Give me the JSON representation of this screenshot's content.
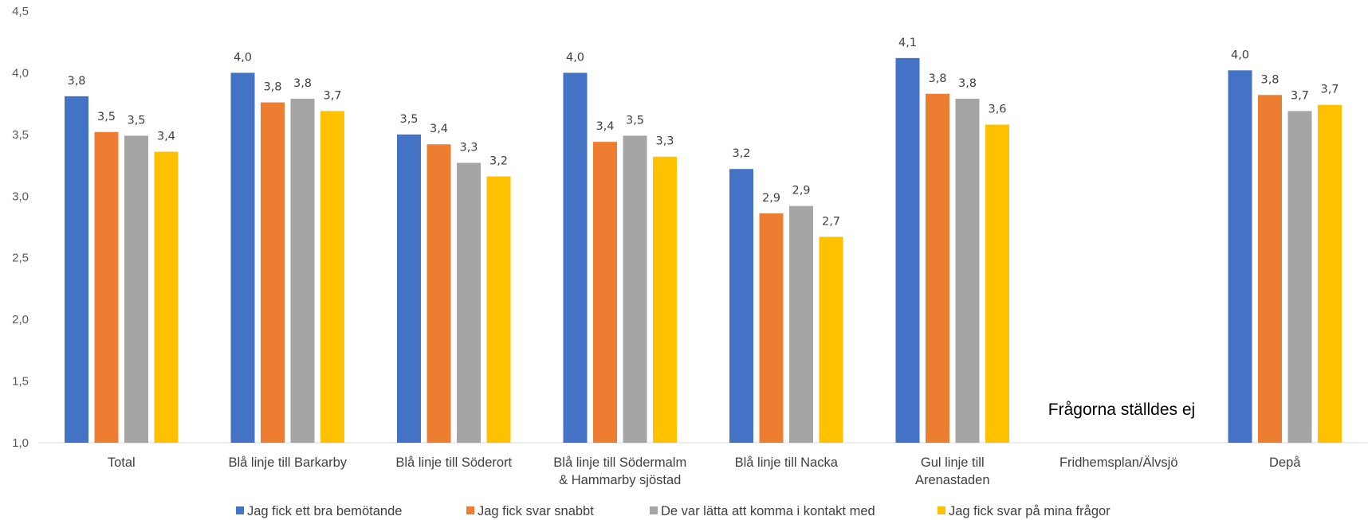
{
  "chart_data": {
    "type": "bar",
    "ylim": [
      1.0,
      4.5
    ],
    "yticks": [
      "1,0",
      "1,5",
      "2,0",
      "2,5",
      "3,0",
      "3,5",
      "4,0",
      "4,5"
    ],
    "categories": [
      [
        "Total"
      ],
      [
        "Blå linje till Barkarby"
      ],
      [
        "Blå linje till Söderort"
      ],
      [
        "Blå linje till Södermalm",
        "& Hammarby sjöstad"
      ],
      [
        "Blå linje till Nacka"
      ],
      [
        "Gul linje till",
        "Arenastaden"
      ],
      [
        "Fridhemsplan/Älvsjö"
      ],
      [
        "Depå"
      ]
    ],
    "series": [
      {
        "name": "Jag fick ett bra bemötande",
        "color": "#4472C4",
        "values": [
          3.81,
          4.0,
          3.5,
          4.0,
          3.22,
          4.12,
          null,
          4.02
        ],
        "labels": [
          "3,8",
          "4,0",
          "3,5",
          "4,0",
          "3,2",
          "4,1",
          null,
          "4,0"
        ]
      },
      {
        "name": "Jag fick svar snabbt",
        "color": "#ED7D31",
        "values": [
          3.52,
          3.76,
          3.42,
          3.44,
          2.86,
          3.83,
          null,
          3.82
        ],
        "labels": [
          "3,5",
          "3,8",
          "3,4",
          "3,4",
          "2,9",
          "3,8",
          null,
          "3,8"
        ]
      },
      {
        "name": "De var lätta att komma i kontakt med",
        "color": "#A5A5A5",
        "values": [
          3.49,
          3.79,
          3.27,
          3.49,
          2.92,
          3.79,
          null,
          3.69
        ],
        "labels": [
          "3,5",
          "3,8",
          "3,3",
          "3,5",
          "2,9",
          "3,8",
          null,
          "3,7"
        ]
      },
      {
        "name": "Jag fick svar på mina frågor",
        "color": "#FFC000",
        "values": [
          3.36,
          3.69,
          3.16,
          3.32,
          2.67,
          3.58,
          null,
          3.74
        ],
        "labels": [
          "3,4",
          "3,7",
          "3,2",
          "3,3",
          "2,7",
          "3,6",
          null,
          "3,7"
        ]
      }
    ],
    "annotation": "Frågorna ställdes ej",
    "grid": false,
    "legend": "bottom"
  }
}
